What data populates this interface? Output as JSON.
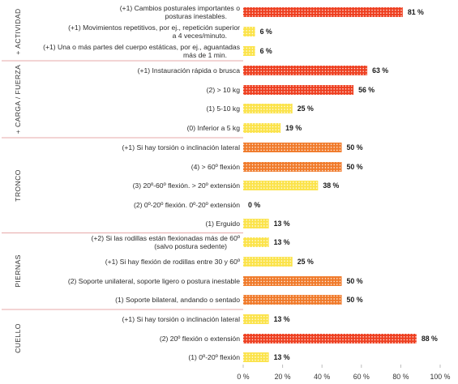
{
  "chart_data": {
    "type": "bar",
    "orientation": "horizontal",
    "xlim": [
      0,
      100
    ],
    "xticks": [
      "0 %",
      "20 %",
      "40 %",
      "60 %",
      "80 %",
      "100 %"
    ],
    "colors": {
      "red": "#ee3f20",
      "orange": "#f07a2a",
      "yellow": "#fbe34a",
      "dot": "#ffffff",
      "separator": "#e7a9a9",
      "tick": "#bcbcbc"
    },
    "groups": [
      {
        "name": "+ ACTIVIDAD",
        "rows": [
          0,
          2
        ]
      },
      {
        "name": "+ CARGA / FUERZA",
        "rows": [
          3,
          6
        ]
      },
      {
        "name": "TRONCO",
        "rows": [
          7,
          11
        ]
      },
      {
        "name": "PIERNAS",
        "rows": [
          12,
          15
        ]
      },
      {
        "name": "CUELLO",
        "rows": [
          16,
          18
        ]
      }
    ],
    "bars": [
      {
        "label": [
          "(+1) Cambios posturales importantes o",
          "posturas inestables."
        ],
        "value": 81,
        "value_label": "81 %",
        "color": "red"
      },
      {
        "label": [
          "(+1) Movimientos repetitivos, por ej., repetición superior",
          "a 4 veces/minuto."
        ],
        "value": 6,
        "value_label": "6 %",
        "color": "yellow"
      },
      {
        "label": [
          "(+1) Una o más partes del cuerpo estáticas, por ej., aguantadas",
          "más de 1 min."
        ],
        "value": 6,
        "value_label": "6 %",
        "color": "yellow"
      },
      {
        "label": [
          "(+1) Instauración rápida o brusca"
        ],
        "value": 63,
        "value_label": "63 %",
        "color": "red"
      },
      {
        "label": [
          "(2) > 10 kg"
        ],
        "value": 56,
        "value_label": "56 %",
        "color": "red"
      },
      {
        "label": [
          "(1) 5-10 kg"
        ],
        "value": 25,
        "value_label": "25 %",
        "color": "yellow"
      },
      {
        "label": [
          "(0) Inferior a 5 kg"
        ],
        "value": 19,
        "value_label": "19 %",
        "color": "yellow"
      },
      {
        "label": [
          "(+1) Si hay torsión o inclinación lateral"
        ],
        "value": 50,
        "value_label": "50 %",
        "color": "orange"
      },
      {
        "label": [
          "(4) > 60º flexión"
        ],
        "value": 50,
        "value_label": "50 %",
        "color": "orange"
      },
      {
        "label": [
          "(3) 20º-60º flexión. > 20º extensión"
        ],
        "value": 38,
        "value_label": "38 %",
        "color": "yellow"
      },
      {
        "label": [
          "(2) 0º-20º flexión. 0º-20º extensión"
        ],
        "value": 0,
        "value_label": "0 %",
        "color": "yellow"
      },
      {
        "label": [
          "(1) Erguido"
        ],
        "value": 13,
        "value_label": "13 %",
        "color": "yellow"
      },
      {
        "label": [
          "(+2) Si las rodillas están flexionadas más de 60º",
          "(salvo postura sedente)"
        ],
        "value": 13,
        "value_label": "13 %",
        "color": "yellow"
      },
      {
        "label": [
          "(+1) Si hay flexión de rodillas entre 30 y 60º"
        ],
        "value": 25,
        "value_label": "25 %",
        "color": "yellow"
      },
      {
        "label": [
          "(2) Soporte unilateral, soporte ligero o postura inestable"
        ],
        "value": 50,
        "value_label": "50 %",
        "color": "orange"
      },
      {
        "label": [
          "(1) Soporte bilateral, andando o sentado"
        ],
        "value": 50,
        "value_label": "50 %",
        "color": "orange"
      },
      {
        "label": [
          "(+1) Si hay torsión o inclinación lateral"
        ],
        "value": 13,
        "value_label": "13 %",
        "color": "yellow"
      },
      {
        "label": [
          "(2) 20º flexión o extensión"
        ],
        "value": 88,
        "value_label": "88 %",
        "color": "red"
      },
      {
        "label": [
          "(1) 0º-20º flexión"
        ],
        "value": 13,
        "value_label": "13 %",
        "color": "yellow"
      }
    ]
  }
}
